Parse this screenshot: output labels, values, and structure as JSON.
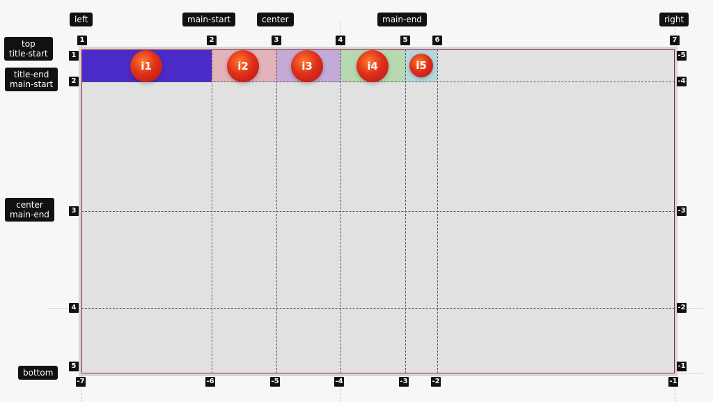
{
  "column_area_labels": {
    "left": "left",
    "main_start": "main-start",
    "center": "center",
    "main_end": "main-end",
    "right": "right"
  },
  "row_area_labels": {
    "top_title_start": [
      "top",
      "title-start"
    ],
    "title_end_main_start": [
      "title-end",
      "main-start"
    ],
    "center_main_end": [
      "center",
      "main-end"
    ],
    "bottom": "bottom"
  },
  "column_line_numbers_top": [
    "1",
    "2",
    "3",
    "4",
    "5",
    "6",
    "7"
  ],
  "column_line_numbers_bottom": [
    "-7",
    "-6",
    "-5",
    "-4",
    "-3",
    "-2",
    "-1"
  ],
  "row_line_numbers_left": [
    "1",
    "2",
    "3",
    "4",
    "5"
  ],
  "row_line_numbers_right": [
    "-5",
    "-4",
    "-3",
    "-2",
    "-1"
  ],
  "items": [
    {
      "label": "i1",
      "color": "#4b2bc8"
    },
    {
      "label": "i2",
      "color": "#e2b3b8"
    },
    {
      "label": "i3",
      "color": "#c4aad6"
    },
    {
      "label": "i4",
      "color": "#b6d9b0"
    },
    {
      "label": "i5",
      "color": "#b7d7e0"
    }
  ]
}
